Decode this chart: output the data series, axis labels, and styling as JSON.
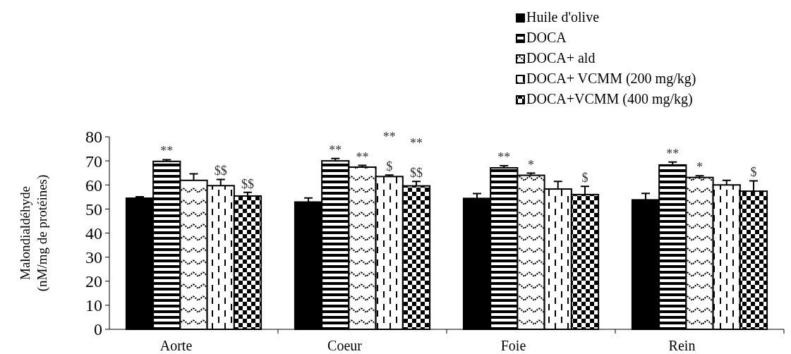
{
  "chart_data": {
    "type": "bar",
    "ylabel": "Malondialdéhyde\n(nM/mg de protéines)",
    "categories": [
      "Aorte",
      "Coeur",
      "Foie",
      "Rein"
    ],
    "ylim": [
      0,
      80
    ],
    "yticks": [
      0,
      10,
      20,
      30,
      40,
      50,
      60,
      70,
      80
    ],
    "grid": false,
    "legend": "top right",
    "series": [
      {
        "name": "Huile d'olive",
        "color": "#000000",
        "values": [
          54.5,
          52.9,
          54.4,
          53.8
        ],
        "errors": [
          0.6,
          1.7,
          2,
          2.7
        ]
      },
      {
        "name": "DOCA",
        "color": "#000000",
        "values": [
          69.8,
          70,
          67.1,
          68.3
        ],
        "errors": [
          0.7,
          1,
          0.9,
          1.2
        ],
        "value_labels": [
          "**",
          "**",
          "**",
          "**"
        ]
      },
      {
        "name": "DOCA+ ald",
        "color": "#000000",
        "values": [
          61.9,
          67.4,
          64,
          63.1
        ],
        "errors": [
          2.7,
          0.7,
          0.9,
          0.7
        ],
        "value_labels": [
          null,
          "**",
          "*",
          "*"
        ]
      },
      {
        "name": "DOCA+ VCMM (200 mg/kg)",
        "color": "#000000",
        "values": [
          59.7,
          63.5,
          58.3,
          60
        ],
        "errors": [
          2.6,
          0.6,
          3.2,
          1.9
        ],
        "value_labels": [
          "$$",
          "**\n$",
          null,
          null
        ]
      },
      {
        "name": "DOCA+VCMM (400 mg/kg)",
        "color": "#000000",
        "values": [
          55.4,
          59.6,
          56,
          57.4
        ],
        "errors": [
          1.5,
          1.9,
          3.4,
          4.3
        ],
        "value_labels": [
          "$$",
          "**\n$$",
          "$",
          "$"
        ]
      }
    ]
  }
}
